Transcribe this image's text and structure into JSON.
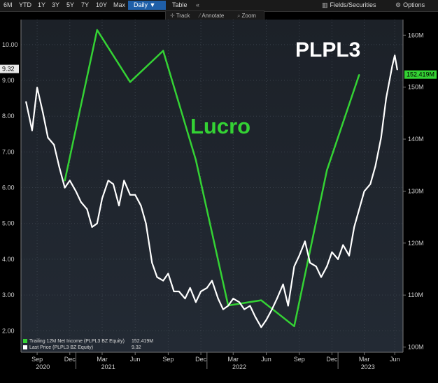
{
  "toolbar": {
    "ranges": [
      "6M",
      "YTD",
      "1Y",
      "3Y",
      "5Y",
      "7Y",
      "10Y",
      "Max"
    ],
    "frequency": "Daily ▼",
    "table_label": "Table",
    "collapse_label": "«",
    "fields_label": "Fields/Securities",
    "options_label": "Options"
  },
  "subtoolbar": {
    "track_label": "Track",
    "annotate_label": "Annotate",
    "zoom_label": "Zoom"
  },
  "colors": {
    "price": "#ffffff",
    "income": "#34d234",
    "background": "#000000",
    "plot_background": "#1f252e"
  },
  "chart_data": {
    "type": "line",
    "title": "PLPL3",
    "annotation": "Lucro",
    "x_ticks": [
      "Sep",
      "Dec",
      "Mar",
      "Jun",
      "Sep",
      "Dec",
      "Mar",
      "Jun",
      "Sep",
      "Dec",
      "Mar",
      "Jun"
    ],
    "x_year_labels": [
      "2020",
      "2021",
      "2022",
      "2023"
    ],
    "left_axis": {
      "ticks": [
        "2.00",
        "3.00",
        "4.00",
        "5.00",
        "6.00",
        "7.00",
        "8.00",
        "9.00",
        "10.00"
      ],
      "ylim": [
        1.4,
        10.7
      ],
      "last_value_label": "9.32"
    },
    "right_axis": {
      "ticks": [
        "100M",
        "110M",
        "120M",
        "130M",
        "140M",
        "150M",
        "160M"
      ],
      "ylim": [
        99,
        163
      ],
      "last_value_label": "152.419M"
    },
    "series": [
      {
        "name": "Trailing 12M Net Income (PLPL3 BZ Equity)",
        "axis": "right",
        "legend_value": "152.419M",
        "x": [
          "2020-12-01",
          "2021-03-01",
          "2021-06-01",
          "2021-09-01",
          "2021-12-01",
          "2022-03-01",
          "2022-06-01",
          "2022-09-01",
          "2022-12-01",
          "2023-03-01"
        ],
        "values": [
          132,
          161,
          151,
          157,
          136,
          108,
          109,
          104,
          134,
          152.4
        ]
      },
      {
        "name": "Last Price (PLPL3 BZ Equity)",
        "axis": "left",
        "legend_value": "9.32",
        "x": [
          "2020-08-15",
          "2020-09-01",
          "2020-09-15",
          "2020-10-01",
          "2020-10-15",
          "2020-11-01",
          "2020-11-15",
          "2020-12-01",
          "2020-12-15",
          "2021-01-01",
          "2021-01-15",
          "2021-02-01",
          "2021-02-15",
          "2021-03-01",
          "2021-03-15",
          "2021-04-01",
          "2021-04-15",
          "2021-05-01",
          "2021-05-15",
          "2021-06-01",
          "2021-06-15",
          "2021-07-01",
          "2021-07-15",
          "2021-08-01",
          "2021-08-15",
          "2021-09-01",
          "2021-09-15",
          "2021-10-01",
          "2021-10-15",
          "2021-11-01",
          "2021-11-15",
          "2021-12-01",
          "2021-12-15",
          "2022-01-01",
          "2022-01-15",
          "2022-02-01",
          "2022-02-15",
          "2022-03-01",
          "2022-03-15",
          "2022-04-01",
          "2022-04-15",
          "2022-05-01",
          "2022-05-15",
          "2022-06-01",
          "2022-06-15",
          "2022-07-01",
          "2022-07-15",
          "2022-08-01",
          "2022-08-15",
          "2022-09-01",
          "2022-09-15",
          "2022-10-01",
          "2022-10-15",
          "2022-11-01",
          "2022-11-15",
          "2022-12-01",
          "2022-12-15",
          "2023-01-01",
          "2023-01-15",
          "2023-02-01",
          "2023-02-15",
          "2023-03-01",
          "2023-03-15",
          "2023-04-01",
          "2023-04-15",
          "2023-05-01",
          "2023-05-15",
          "2023-06-01",
          "2023-06-08",
          "2023-06-15"
        ],
        "values": [
          8.4,
          7.6,
          8.8,
          8.1,
          7.4,
          7.2,
          6.6,
          6.0,
          6.2,
          5.9,
          5.6,
          5.4,
          4.9,
          5.0,
          5.7,
          6.2,
          6.1,
          5.5,
          6.2,
          5.8,
          5.8,
          5.5,
          5.0,
          3.9,
          3.5,
          3.4,
          3.6,
          3.1,
          3.1,
          2.9,
          3.2,
          2.8,
          3.1,
          3.2,
          3.4,
          2.9,
          2.6,
          2.7,
          2.9,
          2.8,
          2.6,
          2.7,
          2.4,
          2.1,
          2.3,
          2.6,
          2.9,
          3.3,
          2.7,
          3.8,
          4.1,
          4.5,
          3.9,
          3.8,
          3.5,
          3.8,
          4.2,
          4.0,
          4.4,
          4.1,
          4.9,
          5.4,
          5.9,
          6.1,
          6.6,
          7.4,
          8.5,
          9.4,
          9.7,
          9.3
        ]
      }
    ]
  }
}
